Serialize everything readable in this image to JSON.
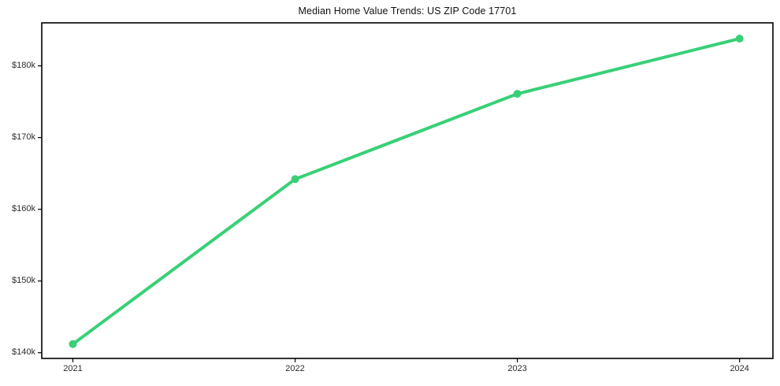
{
  "chart_data": {
    "type": "line",
    "title": "Median Home Value Trends: US ZIP Code 17701",
    "x": [
      2021,
      2022,
      2023,
      2024
    ],
    "xtick_labels": [
      "2021",
      "2022",
      "2023",
      "2024"
    ],
    "series": [
      {
        "name": "Median Home Value",
        "values": [
          141200,
          164200,
          176100,
          183800
        ],
        "color": "#38d077",
        "marker": "circle"
      }
    ],
    "ytick_values": [
      140000,
      150000,
      160000,
      170000,
      180000
    ],
    "ytick_labels": [
      "$140k",
      "$150k",
      "$160k",
      "$170k",
      "$180k"
    ],
    "xlim": [
      2020.86,
      2024.15
    ],
    "ylim": [
      139200,
      186000
    ],
    "grid": false,
    "legend_position": "none",
    "frame_color": "#000000",
    "text_color": "#2b2b2b",
    "background_color": "#ffffff"
  }
}
